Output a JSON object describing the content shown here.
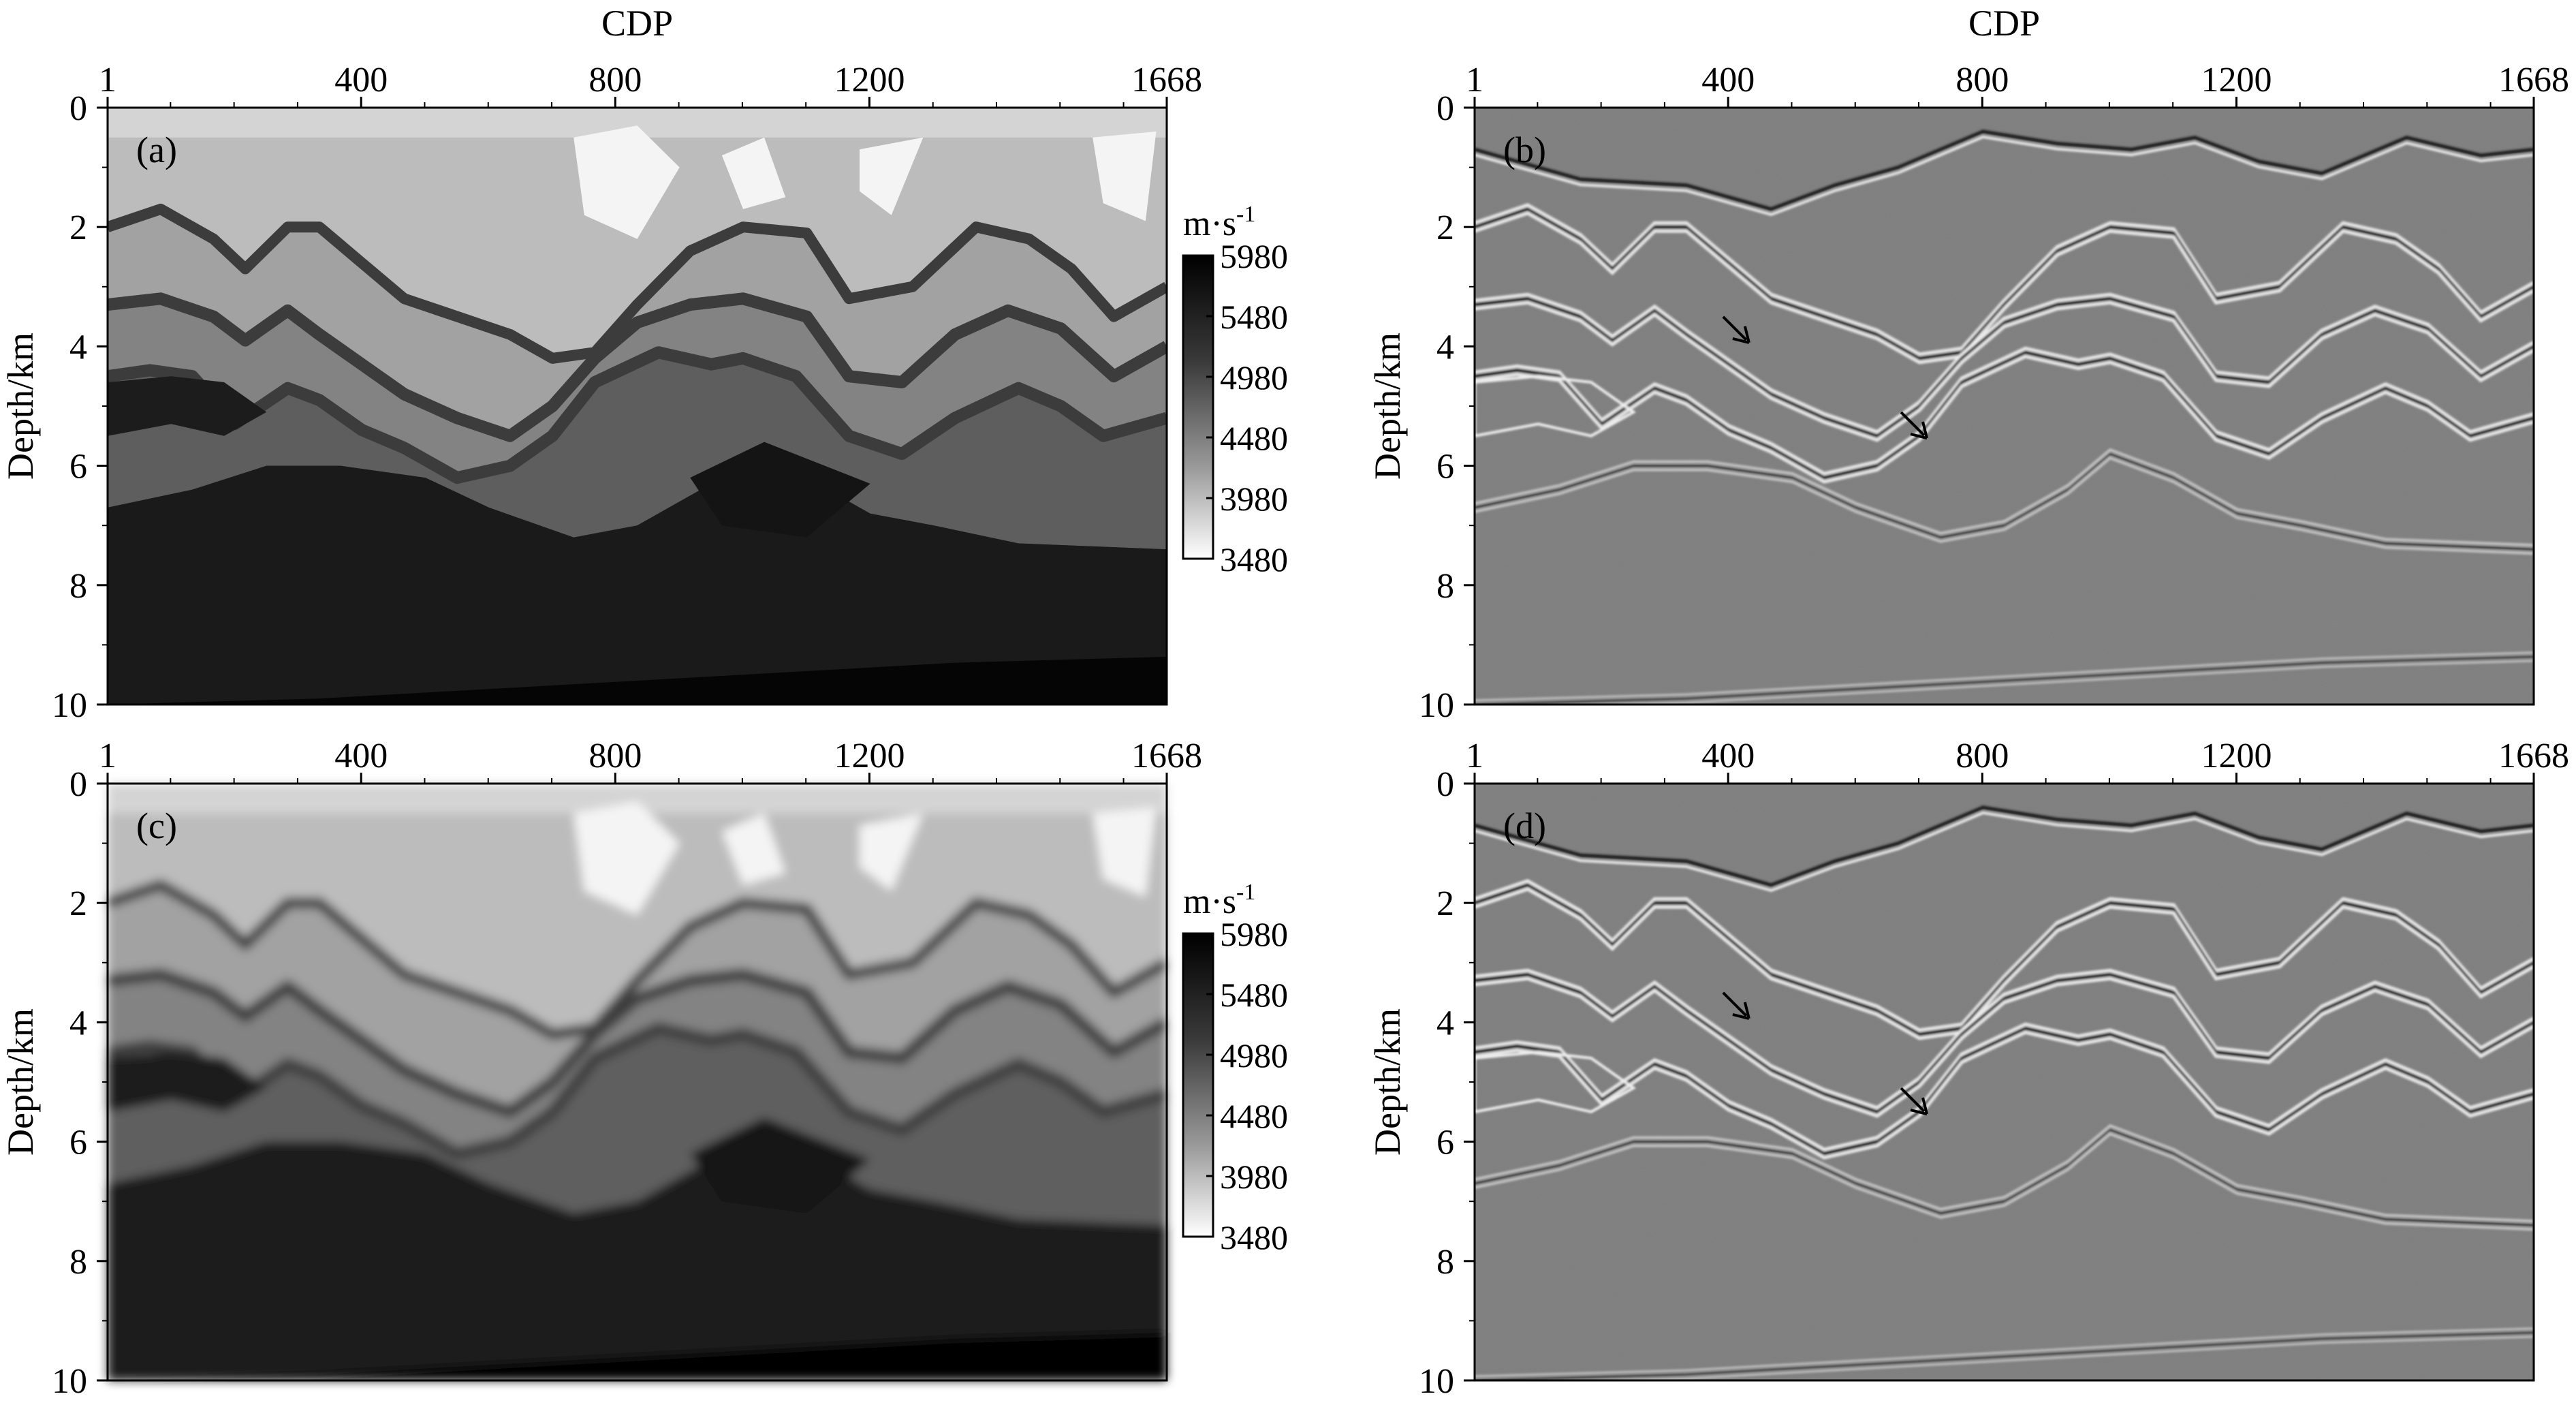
{
  "figure": {
    "panels": [
      {
        "id": "a",
        "label": "(a)",
        "kind": "velocity",
        "top_label": "CDP",
        "ylabel": "Depth/km",
        "colorbar": true
      },
      {
        "id": "b",
        "label": "(b)",
        "kind": "image",
        "top_label": "CDP",
        "ylabel": "Depth/km",
        "colorbar": false
      },
      {
        "id": "c",
        "label": "(c)",
        "kind": "velocity_smooth",
        "top_label": "",
        "ylabel": "Depth/km",
        "colorbar": true
      },
      {
        "id": "d",
        "label": "(d)",
        "kind": "image_smooth",
        "top_label": "",
        "ylabel": "Depth/km",
        "colorbar": false
      }
    ],
    "colorbar": {
      "unit_label": "m·s",
      "unit_exp": "-1",
      "ticks": [
        5980,
        5480,
        4980,
        4480,
        3980,
        3480
      ],
      "range": [
        3480,
        5980
      ]
    },
    "arrows": [
      {
        "panel": "b",
        "cdp": 420,
        "depth": 3.8
      },
      {
        "panel": "b",
        "cdp": 700,
        "depth": 5.4
      },
      {
        "panel": "d",
        "cdp": 420,
        "depth": 3.8
      },
      {
        "panel": "d",
        "cdp": 700,
        "depth": 5.4
      }
    ]
  },
  "chart_data": [
    {
      "type": "heatmap",
      "panel": "(a)",
      "title": "",
      "xlabel": "CDP",
      "ylabel": "Depth/km",
      "x_ticks": [
        1,
        400,
        800,
        1200,
        1668
      ],
      "y_ticks": [
        0,
        2,
        4,
        6,
        8,
        10
      ],
      "xlim": [
        1,
        1668
      ],
      "ylim": [
        0,
        10
      ],
      "colorbar_label": "m·s-1",
      "colorbar_ticks": [
        5980,
        5480,
        4980,
        4480,
        3980,
        3480
      ],
      "colorbar_range": [
        3480,
        5980
      ]
    },
    {
      "type": "heatmap",
      "panel": "(b)",
      "title": "",
      "xlabel": "CDP",
      "ylabel": "Depth/km",
      "x_ticks": [
        1,
        400,
        800,
        1200,
        1668
      ],
      "y_ticks": [
        0,
        2,
        4,
        6,
        8,
        10
      ],
      "xlim": [
        1,
        1668
      ],
      "ylim": [
        0,
        10
      ]
    },
    {
      "type": "heatmap",
      "panel": "(c)",
      "title": "",
      "xlabel": "",
      "ylabel": "Depth/km",
      "x_ticks": [
        1,
        400,
        800,
        1200,
        1668
      ],
      "y_ticks": [
        0,
        2,
        4,
        6,
        8,
        10
      ],
      "xlim": [
        1,
        1668
      ],
      "ylim": [
        0,
        10
      ],
      "colorbar_label": "m·s-1",
      "colorbar_ticks": [
        5980,
        5480,
        4980,
        4480,
        3980,
        3480
      ],
      "colorbar_range": [
        3480,
        5980
      ]
    },
    {
      "type": "heatmap",
      "panel": "(d)",
      "title": "",
      "xlabel": "",
      "ylabel": "Depth/km",
      "x_ticks": [
        1,
        400,
        800,
        1200,
        1668
      ],
      "y_ticks": [
        0,
        2,
        4,
        6,
        8,
        10
      ],
      "xlim": [
        1,
        1668
      ],
      "ylim": [
        0,
        10
      ]
    }
  ]
}
